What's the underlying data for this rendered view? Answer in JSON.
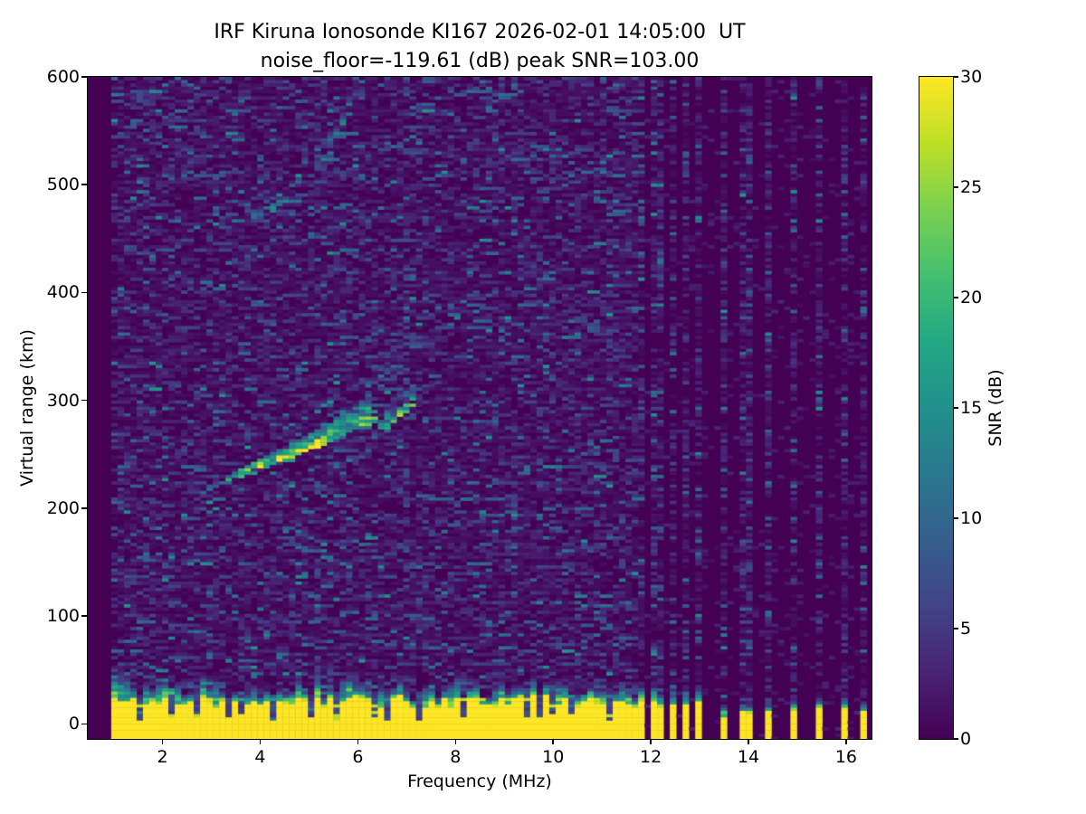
{
  "figure": {
    "title_line1": "IRF Kiruna Ionosonde KI167 2026-02-01 14:05:00  UT",
    "title_line2": "noise_floor=-119.61 (dB) peak SNR=103.00",
    "xlabel": "Frequency (MHz)",
    "ylabel": "Virtual range (km)",
    "colorbar_label": "SNR (dB)",
    "background_color": "#ffffff",
    "text_color": "#000000"
  },
  "chart_data": {
    "type": "heatmap",
    "title": "IRF Kiruna Ionosonde KI167 2026-02-01 14:05:00  UT",
    "subtitle": "noise_floor=-119.61 (dB) peak SNR=103.00",
    "station": "IRF Kiruna Ionosonde KI167",
    "timestamp_ut": "2026-02-01 14:05:00",
    "noise_floor_db": -119.61,
    "peak_snr_db": 103.0,
    "xlabel": "Frequency (MHz)",
    "ylabel": "Virtual range (km)",
    "xlim": [
      0.47,
      16.52
    ],
    "ylim": [
      -14,
      600
    ],
    "xticks": [
      2,
      4,
      6,
      8,
      10,
      12,
      14,
      16
    ],
    "yticks": [
      0,
      100,
      200,
      300,
      400,
      500,
      600
    ],
    "grid": false,
    "colorbar": {
      "label": "SNR (dB)",
      "vmin": 0,
      "vmax": 30,
      "ticks": [
        0,
        5,
        10,
        15,
        20,
        25,
        30
      ],
      "colormap": "viridis",
      "colormap_stops": [
        "#440154",
        "#482475",
        "#414487",
        "#355f8d",
        "#2a788e",
        "#21918c",
        "#22a884",
        "#44bf70",
        "#7ad151",
        "#bddf26",
        "#fde725"
      ]
    },
    "features": {
      "sounded_freq_range_mhz": [
        0.95,
        16.42
      ],
      "continuous_sweep_mhz": [
        0.95,
        11.62
      ],
      "sparse_sounding_freqs_mhz": [
        11.65,
        11.85,
        12.05,
        12.25,
        12.5,
        12.75,
        13.0,
        13.45,
        13.95,
        14.45,
        14.95,
        15.5,
        15.95,
        16.3
      ],
      "ground_clutter": {
        "description": "saturated yellow band at bottom of every sounded frequency",
        "top_km_range": [
          15,
          28
        ],
        "green_transition_top_km": 42,
        "notch_freqs_mhz": [
          1.55,
          2.2,
          2.75,
          3.3,
          3.62,
          4.32,
          5.0,
          5.52,
          6.3,
          6.62,
          7.3,
          8.15,
          9.5,
          9.72,
          9.95,
          10.4,
          11.1
        ]
      },
      "first_hop_trace": {
        "points": [
          [
            2.9,
            218
          ],
          [
            3.05,
            221
          ],
          [
            3.6,
            231
          ],
          [
            4.0,
            238
          ],
          [
            4.5,
            245
          ],
          [
            5.0,
            255
          ],
          [
            5.5,
            265
          ],
          [
            6.0,
            277
          ],
          [
            6.25,
            284
          ]
        ],
        "peak_snr_db": 30
      },
      "first_hop_upper_branch": {
        "points": [
          [
            6.35,
            262
          ],
          [
            6.6,
            274
          ],
          [
            6.9,
            288
          ],
          [
            7.25,
            302
          ]
        ],
        "peak_snr_db": 22
      },
      "second_hop_trace": {
        "points": [
          [
            3.7,
            462
          ],
          [
            4.1,
            474
          ],
          [
            4.6,
            488
          ],
          [
            5.0,
            502
          ],
          [
            5.4,
            528
          ],
          [
            5.75,
            562
          ],
          [
            5.95,
            572
          ]
        ],
        "peak_snr_db": 14
      },
      "diffuse_cloud": {
        "freq_mhz": [
          6.15,
          7.1
        ],
        "range_km": [
          305,
          375
        ],
        "snr_db": 8
      },
      "noise_boost_columns_mhz": [
        5.15,
        7.0
      ]
    },
    "render": {
      "seed": 167,
      "freq_step_mhz": 0.13,
      "range_step_km": 3
    }
  }
}
